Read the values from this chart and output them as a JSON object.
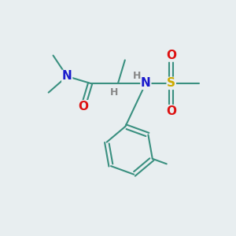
{
  "background_color": "#e8eef0",
  "atom_colors": {
    "C": "#3a9080",
    "N": "#1a1acc",
    "O": "#dd1111",
    "S": "#ccaa00",
    "H": "#888888"
  },
  "bond_color": "#3a9080",
  "line_width": 1.5,
  "font_size_atom": 11,
  "font_size_h": 9
}
